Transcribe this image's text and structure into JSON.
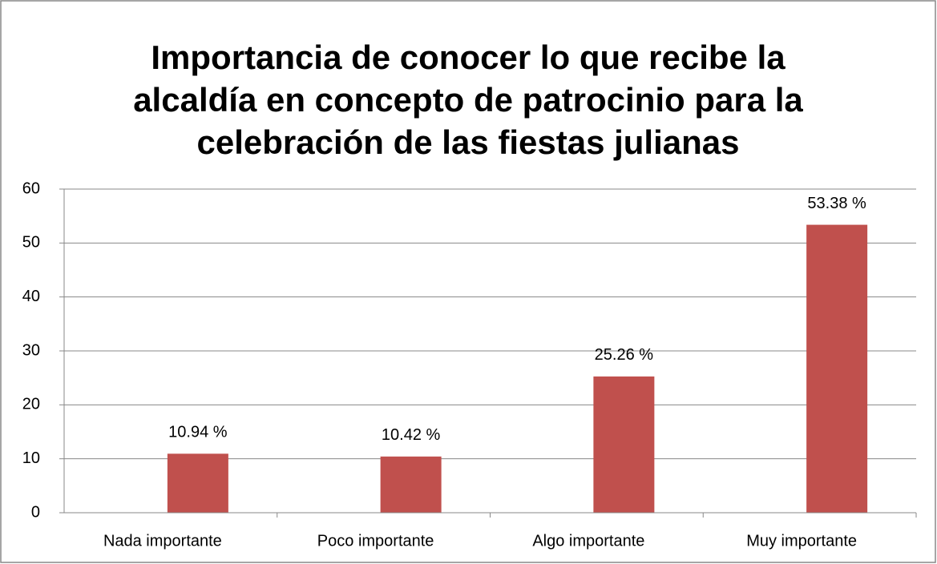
{
  "chart_data": {
    "type": "bar",
    "title": [
      "Importancia de conocer lo que recibe la",
      "alcaldía en concepto de patrocinio para la",
      "celebración de las fiestas julianas"
    ],
    "categories": [
      "Nada importante",
      "Poco importante",
      "Algo importante",
      "Muy importante"
    ],
    "values": [
      10.94,
      10.42,
      25.26,
      53.38
    ],
    "value_labels": [
      "10.94 %",
      "10.42 %",
      "25.26 %",
      "53.38 %"
    ],
    "color": "#c0504d",
    "ylim": [
      0,
      60
    ],
    "yticks": [
      0,
      10,
      20,
      30,
      40,
      50,
      60
    ],
    "grid": true
  }
}
